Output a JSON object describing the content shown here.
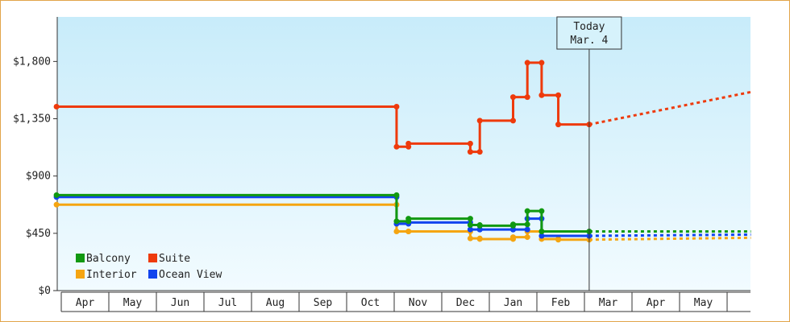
{
  "chart_data": {
    "type": "line",
    "step": true,
    "title": "",
    "xlabel": "",
    "ylabel": "",
    "ylim": [
      0,
      2150
    ],
    "yticks": [
      0,
      450,
      900,
      1350,
      1800
    ],
    "ytick_labels": [
      "$0",
      "$450",
      "$900",
      "$1,350",
      "$1,800"
    ],
    "months": [
      "Apr",
      "May",
      "Jun",
      "Jul",
      "Aug",
      "Sep",
      "Oct",
      "Nov",
      "Dec",
      "Jan",
      "Feb",
      "Mar",
      "Apr",
      "May"
    ],
    "x_domain": [
      -0.1,
      14.5
    ],
    "today": {
      "line1": "Today",
      "line2": "Mar. 4",
      "x": 11.1
    },
    "grid": false,
    "legend_position": "bottom-left",
    "series": [
      {
        "name": "Suite",
        "color": "#ee3a0c",
        "points": [
          [
            -0.1,
            1445
          ],
          [
            7.05,
            1445
          ],
          [
            7.05,
            1130
          ],
          [
            7.3,
            1130
          ],
          [
            7.3,
            1155
          ],
          [
            8.6,
            1155
          ],
          [
            8.6,
            1090
          ],
          [
            8.8,
            1090
          ],
          [
            8.8,
            1335
          ],
          [
            9.5,
            1335
          ],
          [
            9.5,
            1520
          ],
          [
            9.8,
            1520
          ],
          [
            9.8,
            1790
          ],
          [
            10.1,
            1790
          ],
          [
            10.1,
            1535
          ],
          [
            10.45,
            1535
          ],
          [
            10.45,
            1305
          ],
          [
            11.1,
            1305
          ]
        ],
        "forecast": [
          [
            11.1,
            1305
          ],
          [
            14.5,
            1560
          ]
        ]
      },
      {
        "name": "Balcony",
        "color": "#119911",
        "points": [
          [
            -0.1,
            750
          ],
          [
            7.05,
            750
          ],
          [
            7.05,
            545
          ],
          [
            7.3,
            545
          ],
          [
            7.3,
            565
          ],
          [
            8.6,
            565
          ],
          [
            8.6,
            515
          ],
          [
            8.8,
            515
          ],
          [
            8.8,
            510
          ],
          [
            9.5,
            510
          ],
          [
            9.5,
            520
          ],
          [
            9.8,
            520
          ],
          [
            9.8,
            625
          ],
          [
            10.1,
            625
          ],
          [
            10.1,
            465
          ],
          [
            11.1,
            465
          ]
        ],
        "forecast": [
          [
            11.1,
            465
          ],
          [
            14.5,
            465
          ]
        ]
      },
      {
        "name": "Ocean View",
        "color": "#1144ee",
        "points": [
          [
            -0.1,
            735
          ],
          [
            7.05,
            735
          ],
          [
            7.05,
            525
          ],
          [
            7.3,
            525
          ],
          [
            7.3,
            535
          ],
          [
            8.6,
            535
          ],
          [
            8.6,
            480
          ],
          [
            8.8,
            480
          ],
          [
            8.8,
            480
          ],
          [
            9.5,
            480
          ],
          [
            9.5,
            480
          ],
          [
            9.8,
            480
          ],
          [
            9.8,
            565
          ],
          [
            10.1,
            565
          ],
          [
            10.1,
            430
          ],
          [
            11.1,
            430
          ]
        ],
        "forecast": [
          [
            11.1,
            430
          ],
          [
            14.5,
            440
          ]
        ]
      },
      {
        "name": "Interior",
        "color": "#f5a511",
        "points": [
          [
            -0.1,
            675
          ],
          [
            7.05,
            675
          ],
          [
            7.05,
            465
          ],
          [
            7.3,
            465
          ],
          [
            7.3,
            465
          ],
          [
            8.6,
            465
          ],
          [
            8.6,
            410
          ],
          [
            8.8,
            410
          ],
          [
            8.8,
            405
          ],
          [
            9.5,
            405
          ],
          [
            9.5,
            420
          ],
          [
            9.8,
            420
          ],
          [
            9.8,
            465
          ],
          [
            10.1,
            465
          ],
          [
            10.1,
            405
          ],
          [
            10.45,
            405
          ],
          [
            10.45,
            400
          ],
          [
            11.1,
            400
          ]
        ],
        "forecast": [
          [
            11.1,
            400
          ],
          [
            14.5,
            415
          ]
        ]
      }
    ],
    "legend_order": [
      "Balcony",
      "Suite",
      "Interior",
      "Ocean View"
    ]
  }
}
